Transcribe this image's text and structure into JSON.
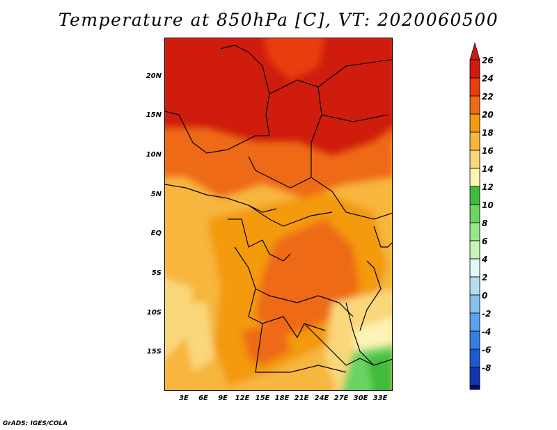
{
  "title": "Temperature at 850hPa [C], VT: 2020060500",
  "credit": "GrADS: IGES/COLA",
  "map": {
    "lat_labels": [
      "20N",
      "15N",
      "10N",
      "5N",
      "EQ",
      "5S",
      "10S",
      "15S"
    ],
    "lon_labels": [
      "3E",
      "6E",
      "9E",
      "12E",
      "15E",
      "18E",
      "21E",
      "24E",
      "27E",
      "30E",
      "33E"
    ]
  },
  "colorbar": {
    "labels": [
      "26",
      "24",
      "22",
      "20",
      "18",
      "16",
      "14",
      "12",
      "10",
      "8",
      "6",
      "4",
      "2",
      "0",
      "-2",
      "-4",
      "-6",
      "-8"
    ],
    "colors": [
      "#d01a10",
      "#ea3e0c",
      "#ef6a14",
      "#f39a10",
      "#f7b63c",
      "#fad77a",
      "#fdf3b4",
      "#3fbc3c",
      "#6ad362",
      "#98e58a",
      "#c6f3b8",
      "#e4f6f8",
      "#b6dcf3",
      "#88c0ef",
      "#5ca2eb",
      "#357ee3",
      "#1d5ad0",
      "#1235b0",
      "#080a6a"
    ],
    "end_colors": {
      "top": "#d01a10",
      "bottom": "#d8ddf7"
    }
  }
}
